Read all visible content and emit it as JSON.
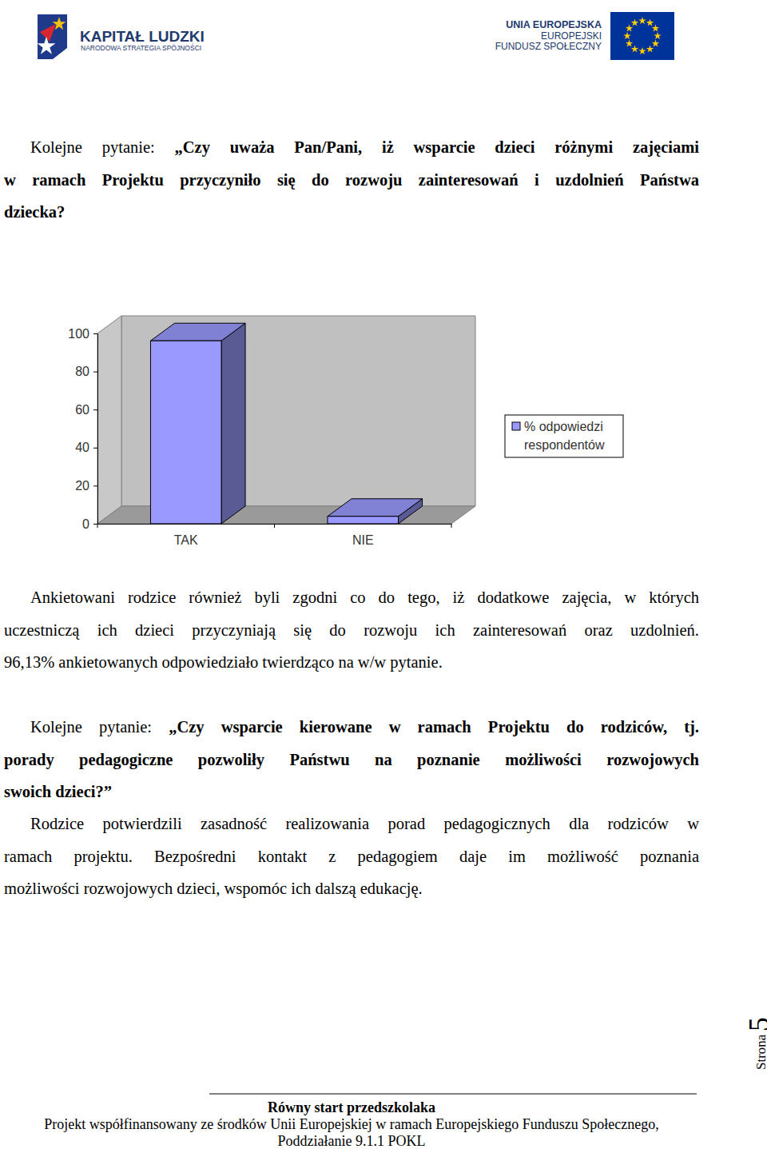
{
  "header": {
    "left_logo": {
      "title": "KAPITAŁ LUDZKI",
      "subtitle": "NARODOWA STRATEGIA SPÓJNOŚCI"
    },
    "right_logo": {
      "lines": [
        "UNIA EUROPEJSKA",
        "EUROPEJSKI",
        "FUNDUSZ SPOŁECZNY"
      ]
    }
  },
  "question1": {
    "intro": "Kolejne pytanie:",
    "lines": [
      "„Czy uważa Pan/Pani, iż wsparcie dzieci różnymi zajęciami",
      "w ramach Projektu przyczyniło się do rozwoju zainteresowań i uzdolnień Państwa",
      "dziecka?"
    ]
  },
  "chart_data": {
    "type": "bar",
    "categories": [
      "TAK",
      "NIE"
    ],
    "series": [
      {
        "name": "% odpowiedzi respondentów",
        "color": "#9999ff",
        "values": [
          96.13,
          3.87
        ]
      }
    ],
    "ylim": [
      0,
      100
    ],
    "yticks": [
      0,
      20,
      40,
      60,
      80,
      100
    ],
    "grid": false,
    "legend": "right"
  },
  "paragraph1": {
    "lines": [
      "Ankietowani rodzice również byli zgodni co do tego, iż dodatkowe zajęcia, w których",
      "uczestniczą ich dzieci przyczyniają się do rozwoju ich zainteresowań oraz uzdolnień.",
      "96,13% ankietowanych odpowiedziało twierdząco na w/w pytanie."
    ]
  },
  "question2": {
    "intro": "Kolejne pytanie:",
    "lines": [
      "„Czy wsparcie kierowane w ramach Projektu do rodziców, tj.",
      "porady pedagogiczne pozwoliły Państwu na poznanie możliwości rozwojowych",
      "swoich dzieci?”"
    ]
  },
  "paragraph2": {
    "lines": [
      "Rodzice potwierdzili zasadność realizowania porad pedagogicznych dla rodziców w",
      "ramach projektu. Bezpośredni kontakt z pedagogiem daje im możliwość poznania",
      "możliwości rozwojowych dzieci, wspomóc ich dalszą edukację."
    ]
  },
  "footer": {
    "title": "Równy start przedszkolaka",
    "lines": [
      "Projekt współfinansowany ze środków Unii Europejskiej w ramach Europejskiego Funduszu Społecznego,",
      "Poddziałanie 9.1.1 POKL"
    ]
  },
  "page": {
    "label": "Strona",
    "number": "5"
  }
}
